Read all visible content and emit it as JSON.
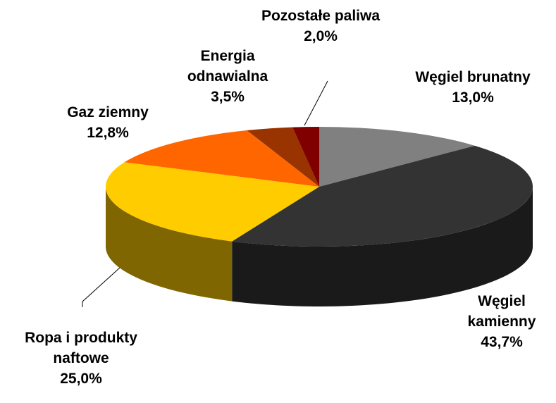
{
  "chart_data": {
    "type": "pie3d",
    "categories": [
      "Węgiel brunatny",
      "Węgiel kamienny",
      "Ropa i produkty naftowe",
      "Gaz ziemny",
      "Energia odnawialna",
      "Pozostałe paliwa"
    ],
    "values": [
      13.0,
      43.7,
      25.0,
      12.8,
      3.5,
      2.0
    ],
    "value_labels": [
      "13,0%",
      "43,7%",
      "25,0%",
      "12,8%",
      "3,5%",
      "2,0%"
    ],
    "colors": [
      "#808080",
      "#333333",
      "#ffcc00",
      "#ff6600",
      "#993300",
      "#800000"
    ]
  }
}
